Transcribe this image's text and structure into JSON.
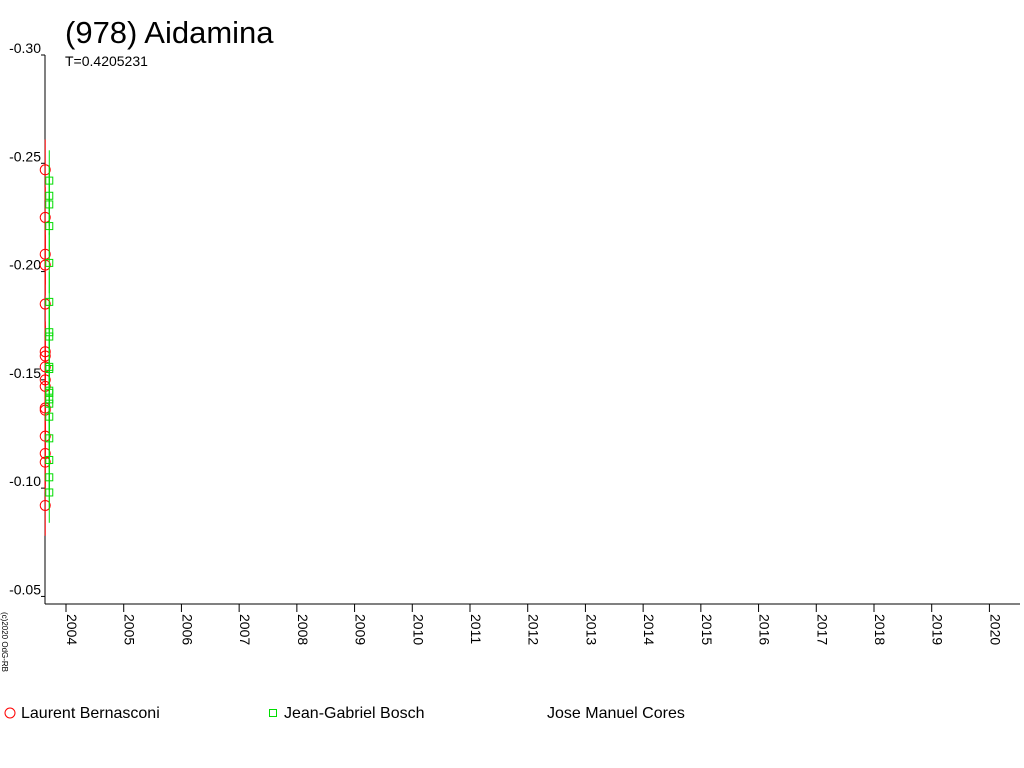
{
  "chart_data": {
    "type": "scatter",
    "title": "(978) Aidamina",
    "subtitle": "T=0.4205231",
    "credit": "(c)2020 OdG-RB",
    "xlim": [
      2003.636,
      2020.53
    ],
    "xticks": [
      2004,
      2005,
      2006,
      2007,
      2008,
      2009,
      2010,
      2011,
      2012,
      2013,
      2014,
      2015,
      2016,
      2017,
      2018,
      2019,
      2020
    ],
    "ylim": [
      -0.3,
      -0.0465
    ],
    "yticks": [
      {
        "value": -0.3,
        "label": "-0.30"
      },
      -0.25,
      {
        "value": -0.2,
        "label": "-0.20"
      },
      -0.15,
      {
        "value": -0.1,
        "label": "-0.10"
      },
      -0.05
    ],
    "inverted_y": true,
    "legend": "bottom",
    "series": [
      {
        "name": "Laurent Bernasconi",
        "color": "#ff0000",
        "marker": "circle",
        "x": [
          2003.64,
          2003.64,
          2003.64,
          2003.64,
          2003.64,
          2003.64,
          2003.64,
          2003.64,
          2003.64,
          2003.64,
          2003.64,
          2003.64,
          2003.64,
          2003.64,
          2003.64,
          2003.64
        ],
        "values": [
          -0.247,
          -0.225,
          -0.208,
          -0.203,
          -0.185,
          -0.163,
          -0.161,
          -0.156,
          -0.15,
          -0.147,
          -0.137,
          -0.136,
          -0.124,
          -0.116,
          -0.112,
          -0.092
        ],
        "errors": [
          0.014,
          0.014,
          0.014,
          0.014,
          0.014,
          0.014,
          0.014,
          0.014,
          0.014,
          0.014,
          0.014,
          0.014,
          0.014,
          0.014,
          0.014,
          0.014
        ]
      },
      {
        "name": "Jean-Gabriel Bosch",
        "color": "#00dd00",
        "marker": "square",
        "x": [
          2003.71,
          2003.71,
          2003.71,
          2003.71,
          2003.71,
          2003.71,
          2003.71,
          2003.71,
          2003.71,
          2003.71,
          2003.71,
          2003.71,
          2003.71,
          2003.71,
          2003.71,
          2003.71,
          2003.71,
          2003.71,
          2003.71
        ],
        "values": [
          -0.242,
          -0.235,
          -0.231,
          -0.221,
          -0.204,
          -0.186,
          -0.172,
          -0.17,
          -0.156,
          -0.155,
          -0.145,
          -0.144,
          -0.141,
          -0.139,
          -0.133,
          -0.123,
          -0.113,
          -0.105,
          -0.098
        ],
        "errors": [
          0.014,
          0.014,
          0.014,
          0.014,
          0.014,
          0.014,
          0.014,
          0.014,
          0.014,
          0.014,
          0.014,
          0.014,
          0.014,
          0.014,
          0.014,
          0.014,
          0.014,
          0.014,
          0.014
        ]
      },
      {
        "name": "Jose Manuel Cores",
        "x": [],
        "values": []
      }
    ]
  }
}
